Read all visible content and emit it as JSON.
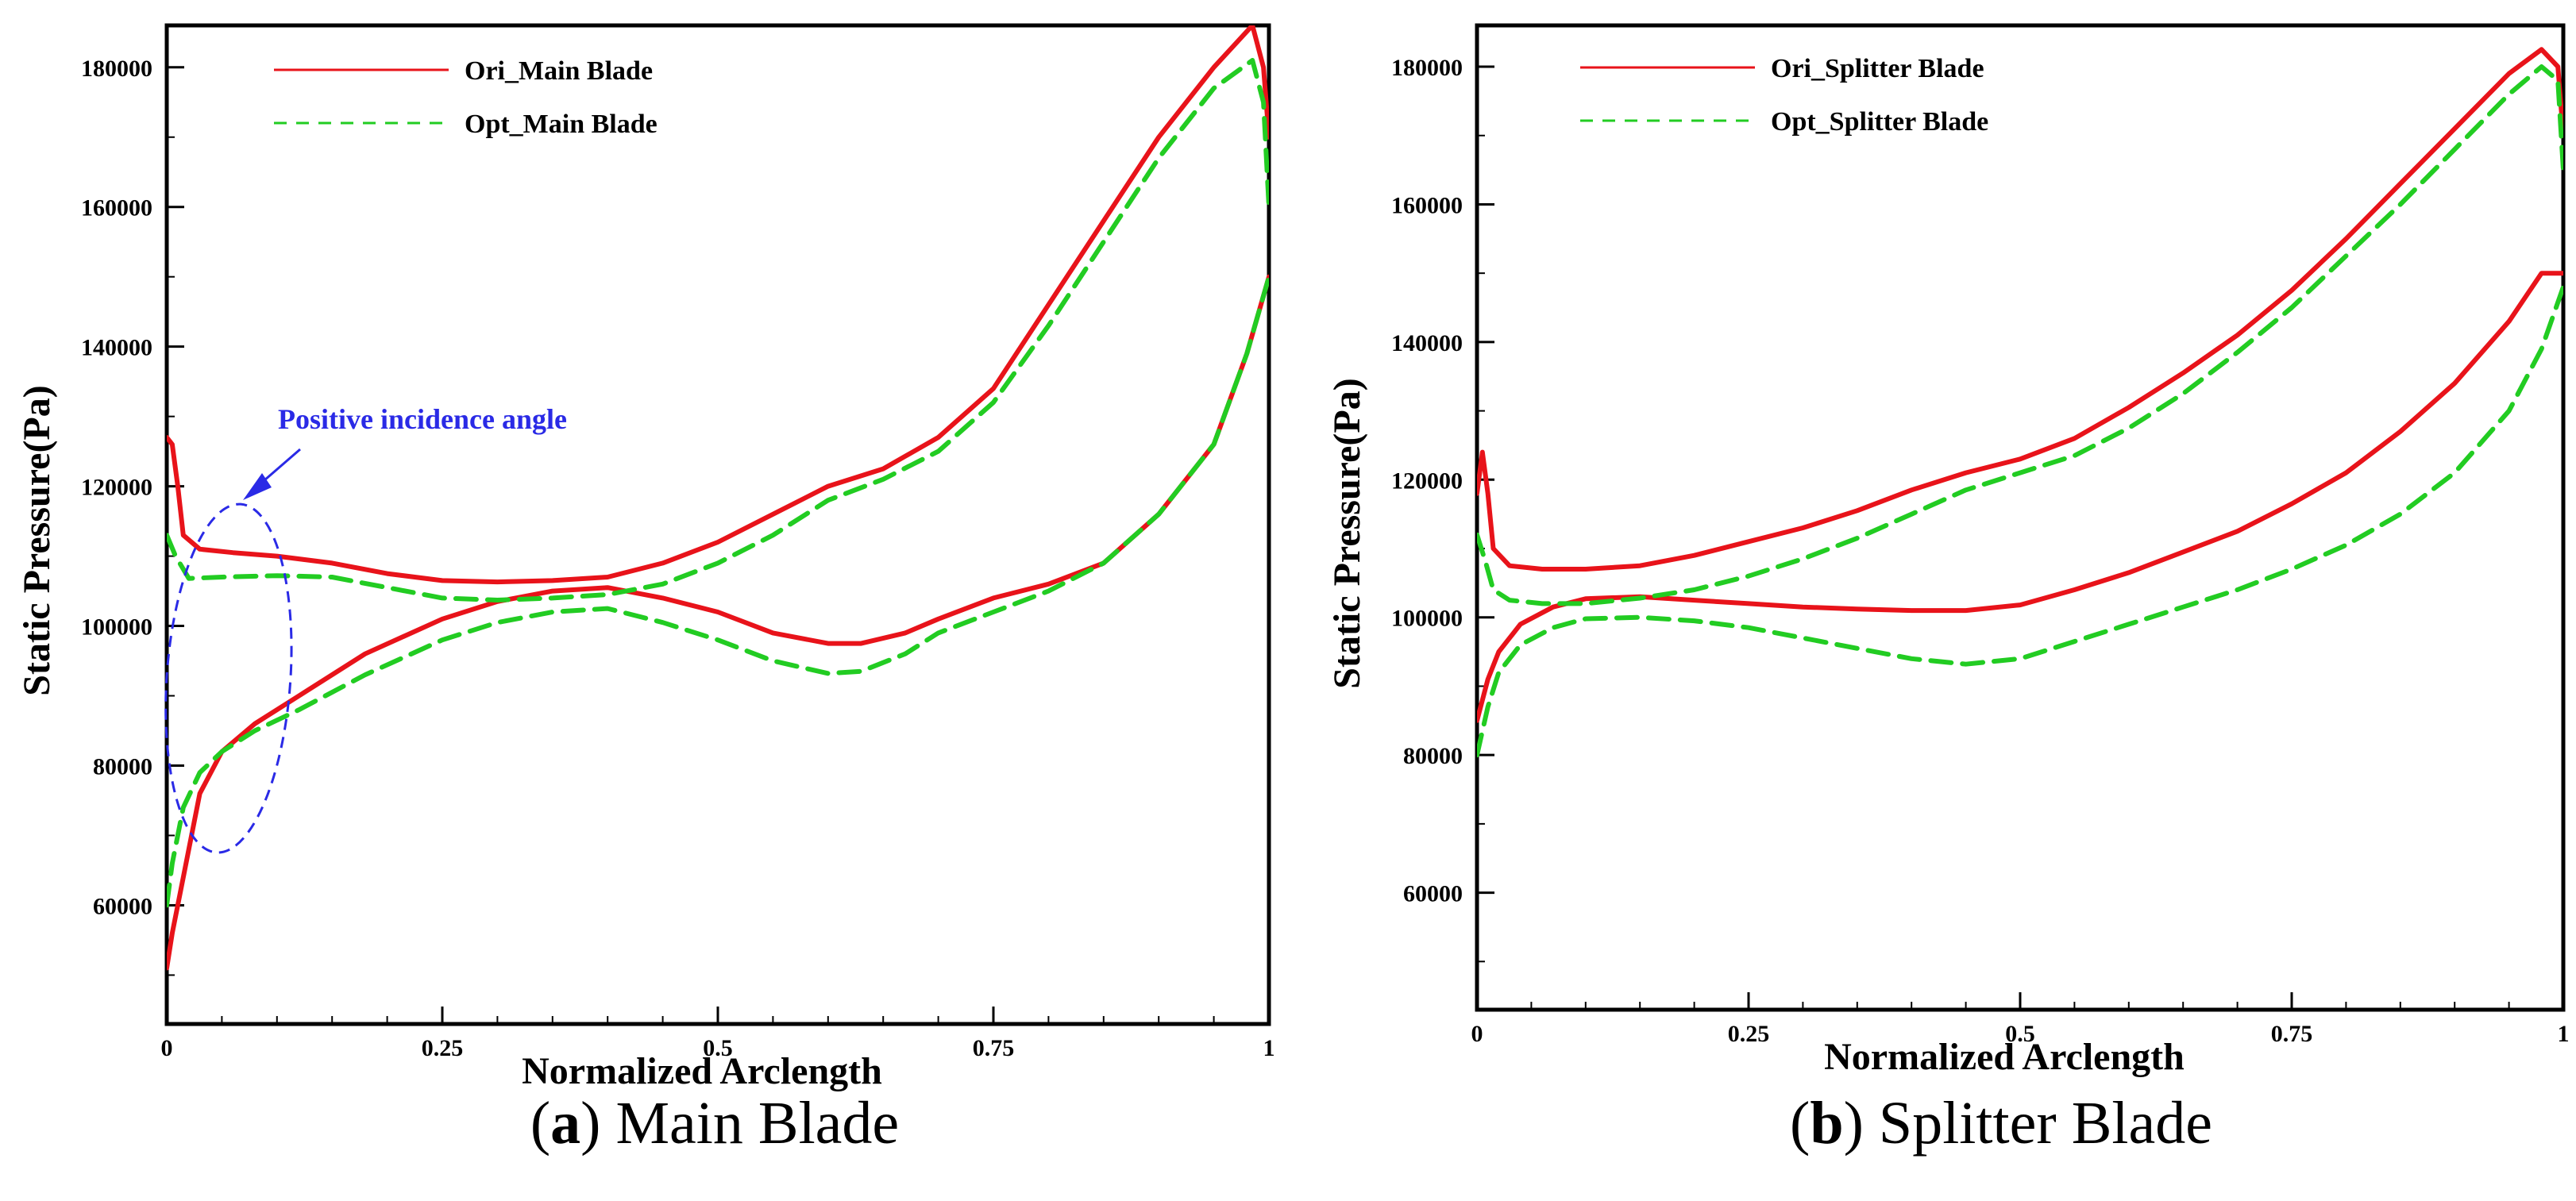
{
  "chart_data": [
    {
      "id": "main",
      "type": "line",
      "caption_letter": "a",
      "caption_text": "Main Blade",
      "xlabel": "Normalized Arclength",
      "ylabel": "Static Pressure(Pa)",
      "xlim": [
        0,
        1
      ],
      "ylim": [
        43000,
        186000
      ],
      "xticks": [
        0,
        0.25,
        0.5,
        0.75,
        1
      ],
      "xtick_labels": [
        "0",
        "0.25",
        "0.5",
        "0.75",
        "1"
      ],
      "yticks": [
        60000,
        80000,
        100000,
        120000,
        140000,
        160000,
        180000
      ],
      "ytick_labels": [
        "60000",
        "80000",
        "100000",
        "120000",
        "140000",
        "160000",
        "180000"
      ],
      "legend": [
        {
          "label": "Ori_Main Blade",
          "color": "#e8131a",
          "dash": "solid"
        },
        {
          "label": "Opt_Main Blade",
          "color": "#22cc22",
          "dash": "dashed"
        }
      ],
      "annotation": {
        "text": "Positive incidence angle",
        "color": "#2a2ae6",
        "ellipse_center": [
          0.085,
          92500
        ],
        "ellipse_radii": [
          0.085,
          25000
        ]
      },
      "series": [
        {
          "name": "Ori_Main Blade pressure side",
          "color": "#e8131a",
          "dash": "solid",
          "points": [
            [
              0,
              51000
            ],
            [
              0.005,
              56000
            ],
            [
              0.015,
              64000
            ],
            [
              0.03,
              76000
            ],
            [
              0.05,
              82000
            ],
            [
              0.08,
              86000
            ],
            [
              0.12,
              90000
            ],
            [
              0.18,
              96000
            ],
            [
              0.25,
              101000
            ],
            [
              0.3,
              103500
            ],
            [
              0.35,
              105000
            ],
            [
              0.4,
              105500
            ],
            [
              0.45,
              104000
            ],
            [
              0.5,
              102000
            ],
            [
              0.55,
              99000
            ],
            [
              0.6,
              97500
            ],
            [
              0.63,
              97500
            ],
            [
              0.67,
              99000
            ],
            [
              0.7,
              101000
            ],
            [
              0.75,
              104000
            ],
            [
              0.8,
              106000
            ],
            [
              0.85,
              109000
            ],
            [
              0.9,
              116000
            ],
            [
              0.95,
              126000
            ],
            [
              0.98,
              139000
            ],
            [
              1.0,
              150000
            ]
          ]
        },
        {
          "name": "Ori_Main Blade suction side",
          "color": "#e8131a",
          "dash": "solid",
          "points": [
            [
              0,
              127000
            ],
            [
              0.005,
              126000
            ],
            [
              0.01,
              120000
            ],
            [
              0.015,
              113000
            ],
            [
              0.03,
              111000
            ],
            [
              0.06,
              110500
            ],
            [
              0.1,
              110000
            ],
            [
              0.15,
              109000
            ],
            [
              0.2,
              107500
            ],
            [
              0.25,
              106500
            ],
            [
              0.3,
              106300
            ],
            [
              0.35,
              106500
            ],
            [
              0.4,
              107000
            ],
            [
              0.45,
              109000
            ],
            [
              0.5,
              112000
            ],
            [
              0.55,
              116000
            ],
            [
              0.6,
              120000
            ],
            [
              0.65,
              122500
            ],
            [
              0.7,
              127000
            ],
            [
              0.75,
              134000
            ],
            [
              0.8,
              146000
            ],
            [
              0.85,
              158000
            ],
            [
              0.9,
              170000
            ],
            [
              0.95,
              180000
            ],
            [
              0.985,
              186000
            ],
            [
              0.995,
              180000
            ],
            [
              1.0,
              170000
            ]
          ]
        },
        {
          "name": "Opt_Main Blade pressure side",
          "color": "#22cc22",
          "dash": "dashed",
          "points": [
            [
              0,
              60000
            ],
            [
              0.005,
              66000
            ],
            [
              0.015,
              74000
            ],
            [
              0.03,
              79000
            ],
            [
              0.05,
              82000
            ],
            [
              0.08,
              85000
            ],
            [
              0.12,
              88000
            ],
            [
              0.18,
              93000
            ],
            [
              0.25,
              98000
            ],
            [
              0.3,
              100500
            ],
            [
              0.35,
              102000
            ],
            [
              0.4,
              102500
            ],
            [
              0.45,
              100500
            ],
            [
              0.5,
              98000
            ],
            [
              0.55,
              95000
            ],
            [
              0.6,
              93200
            ],
            [
              0.63,
              93500
            ],
            [
              0.67,
              96000
            ],
            [
              0.7,
              99000
            ],
            [
              0.75,
              102000
            ],
            [
              0.8,
              105000
            ],
            [
              0.85,
              109000
            ],
            [
              0.9,
              116000
            ],
            [
              0.95,
              126000
            ],
            [
              0.98,
              139000
            ],
            [
              1.0,
              150000
            ]
          ]
        },
        {
          "name": "Opt_Main Blade suction side",
          "color": "#22cc22",
          "dash": "dashed",
          "points": [
            [
              0,
              113000
            ],
            [
              0.008,
              110000
            ],
            [
              0.02,
              106800
            ],
            [
              0.05,
              107000
            ],
            [
              0.1,
              107200
            ],
            [
              0.15,
              107000
            ],
            [
              0.2,
              105500
            ],
            [
              0.25,
              104000
            ],
            [
              0.3,
              103700
            ],
            [
              0.35,
              104000
            ],
            [
              0.4,
              104500
            ],
            [
              0.45,
              106000
            ],
            [
              0.5,
              109000
            ],
            [
              0.55,
              113000
            ],
            [
              0.6,
              118000
            ],
            [
              0.65,
              121000
            ],
            [
              0.7,
              125000
            ],
            [
              0.75,
              132000
            ],
            [
              0.8,
              143000
            ],
            [
              0.85,
              155000
            ],
            [
              0.9,
              167000
            ],
            [
              0.95,
              177000
            ],
            [
              0.985,
              181000
            ],
            [
              0.995,
              175000
            ],
            [
              1.0,
              160000
            ]
          ]
        }
      ]
    },
    {
      "id": "splitter",
      "type": "line",
      "caption_letter": "b",
      "caption_text": "Splitter Blade",
      "xlabel": "Normalized Arclength",
      "ylabel": "Static Pressure(Pa)",
      "xlim": [
        0,
        1
      ],
      "ylim": [
        43000,
        186000
      ],
      "xticks": [
        0,
        0.25,
        0.5,
        0.75,
        1
      ],
      "xtick_labels": [
        "0",
        "0.25",
        "0.5",
        "0.75",
        "1"
      ],
      "yticks": [
        60000,
        80000,
        100000,
        120000,
        140000,
        160000,
        180000
      ],
      "ytick_labels": [
        "60000",
        "80000",
        "100000",
        "120000",
        "140000",
        "160000",
        "180000"
      ],
      "legend": [
        {
          "label": "Ori_Splitter Blade",
          "color": "#e8131a",
          "dash": "solid"
        },
        {
          "label": "Opt_Splitter Blade",
          "color": "#22cc22",
          "dash": "dashed"
        }
      ],
      "series": [
        {
          "name": "Ori_Splitter Blade pressure side",
          "color": "#e8131a",
          "dash": "solid",
          "points": [
            [
              0,
              85000
            ],
            [
              0.01,
              91000
            ],
            [
              0.02,
              95000
            ],
            [
              0.04,
              99000
            ],
            [
              0.07,
              101500
            ],
            [
              0.1,
              102700
            ],
            [
              0.15,
              103000
            ],
            [
              0.2,
              102500
            ],
            [
              0.25,
              102000
            ],
            [
              0.3,
              101500
            ],
            [
              0.35,
              101200
            ],
            [
              0.4,
              101000
            ],
            [
              0.45,
              101000
            ],
            [
              0.5,
              101800
            ],
            [
              0.55,
              104000
            ],
            [
              0.6,
              106500
            ],
            [
              0.65,
              109500
            ],
            [
              0.7,
              112500
            ],
            [
              0.75,
              116500
            ],
            [
              0.8,
              121000
            ],
            [
              0.85,
              127000
            ],
            [
              0.9,
              134000
            ],
            [
              0.95,
              143000
            ],
            [
              0.98,
              150000
            ],
            [
              1.0,
              150000
            ]
          ]
        },
        {
          "name": "Ori_Splitter Blade suction side",
          "color": "#e8131a",
          "dash": "solid",
          "points": [
            [
              0,
              118000
            ],
            [
              0.005,
              124000
            ],
            [
              0.01,
              118000
            ],
            [
              0.015,
              110000
            ],
            [
              0.03,
              107500
            ],
            [
              0.06,
              107000
            ],
            [
              0.1,
              107000
            ],
            [
              0.15,
              107500
            ],
            [
              0.2,
              109000
            ],
            [
              0.25,
              111000
            ],
            [
              0.3,
              113000
            ],
            [
              0.35,
              115500
            ],
            [
              0.4,
              118500
            ],
            [
              0.45,
              121000
            ],
            [
              0.5,
              123000
            ],
            [
              0.55,
              126000
            ],
            [
              0.6,
              130500
            ],
            [
              0.65,
              135500
            ],
            [
              0.7,
              141000
            ],
            [
              0.75,
              147500
            ],
            [
              0.8,
              155000
            ],
            [
              0.85,
              163000
            ],
            [
              0.9,
              171000
            ],
            [
              0.95,
              179000
            ],
            [
              0.98,
              182500
            ],
            [
              0.995,
              180000
            ],
            [
              1.0,
              170000
            ]
          ]
        },
        {
          "name": "Opt_Splitter Blade pressure side",
          "color": "#22cc22",
          "dash": "dashed",
          "points": [
            [
              0,
              80000
            ],
            [
              0.01,
              87000
            ],
            [
              0.02,
              92000
            ],
            [
              0.04,
              96000
            ],
            [
              0.07,
              98500
            ],
            [
              0.1,
              99800
            ],
            [
              0.15,
              100000
            ],
            [
              0.2,
              99500
            ],
            [
              0.25,
              98500
            ],
            [
              0.3,
              97000
            ],
            [
              0.35,
              95500
            ],
            [
              0.4,
              94000
            ],
            [
              0.45,
              93200
            ],
            [
              0.5,
              94000
            ],
            [
              0.55,
              96500
            ],
            [
              0.6,
              99000
            ],
            [
              0.65,
              101500
            ],
            [
              0.7,
              104000
            ],
            [
              0.75,
              107000
            ],
            [
              0.8,
              110500
            ],
            [
              0.85,
              115000
            ],
            [
              0.9,
              121000
            ],
            [
              0.95,
              130000
            ],
            [
              0.98,
              139000
            ],
            [
              1.0,
              148000
            ]
          ]
        },
        {
          "name": "Opt_Splitter Blade suction side",
          "color": "#22cc22",
          "dash": "dashed",
          "points": [
            [
              0,
              112000
            ],
            [
              0.008,
              108000
            ],
            [
              0.015,
              104000
            ],
            [
              0.03,
              102500
            ],
            [
              0.06,
              102000
            ],
            [
              0.1,
              102000
            ],
            [
              0.15,
              102800
            ],
            [
              0.2,
              104000
            ],
            [
              0.25,
              106000
            ],
            [
              0.3,
              108500
            ],
            [
              0.35,
              111500
            ],
            [
              0.4,
              115000
            ],
            [
              0.45,
              118500
            ],
            [
              0.5,
              121000
            ],
            [
              0.55,
              123500
            ],
            [
              0.6,
              127500
            ],
            [
              0.65,
              132500
            ],
            [
              0.7,
              138500
            ],
            [
              0.75,
              145000
            ],
            [
              0.8,
              152500
            ],
            [
              0.85,
              160000
            ],
            [
              0.9,
              168000
            ],
            [
              0.95,
              176000
            ],
            [
              0.98,
              180000
            ],
            [
              0.995,
              178000
            ],
            [
              1.0,
              165000
            ]
          ]
        }
      ]
    }
  ]
}
